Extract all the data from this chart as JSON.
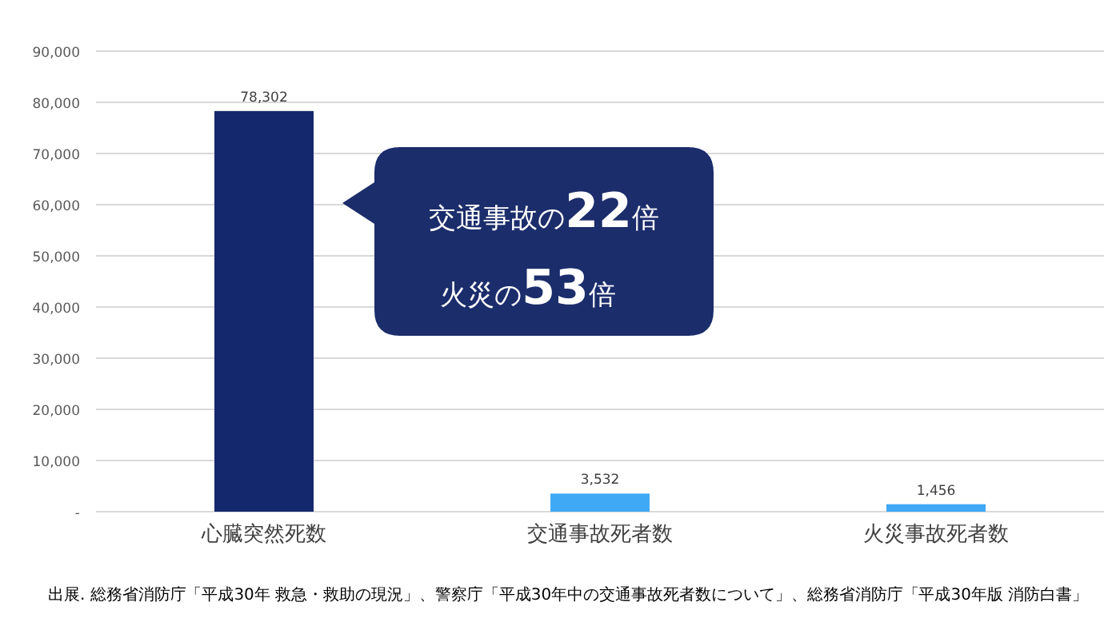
{
  "chart_data": {
    "type": "bar",
    "categories": [
      "心臓突然死数",
      "交通事故死者数",
      "火災事故死者数"
    ],
    "values": [
      78302,
      3532,
      1456
    ],
    "colors": [
      "#14286e",
      "#3fa9f5",
      "#3fa9f5"
    ],
    "value_labels": [
      "78,302",
      "3,532",
      "1,456"
    ],
    "ylim": [
      0,
      90000
    ],
    "yticks": [
      {
        "value": 0,
        "label": "-"
      },
      {
        "value": 10000,
        "label": "10,000"
      },
      {
        "value": 20000,
        "label": "20,000"
      },
      {
        "value": 30000,
        "label": "30,000"
      },
      {
        "value": 40000,
        "label": "40,000"
      },
      {
        "value": 50000,
        "label": "50,000"
      },
      {
        "value": 60000,
        "label": "60,000"
      },
      {
        "value": 70000,
        "label": "70,000"
      },
      {
        "value": 80000,
        "label": "80,000"
      },
      {
        "value": 90000,
        "label": "90,000"
      }
    ],
    "grid": "y",
    "annotations": [
      "交通事故の22倍",
      "火災の53倍",
      "出展. 総務省消防庁「平成30年 救急・救助の現況」、警察庁「平成30年中の交通事故死者数について」、総務省消防庁「平成30年版 消防白書」"
    ]
  }
}
